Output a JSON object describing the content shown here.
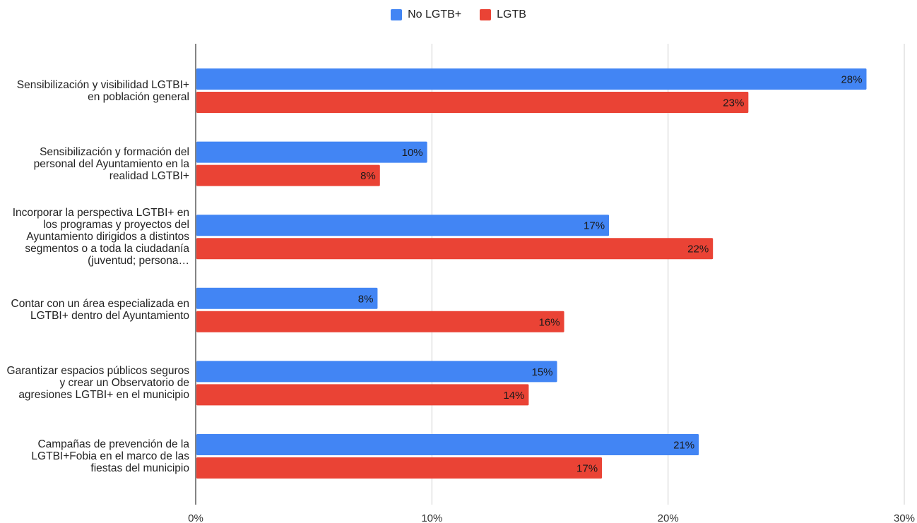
{
  "chart_data": {
    "type": "bar",
    "orientation": "horizontal",
    "categories": [
      "Sensibilización y visibilidad LGTBI+ en población general",
      "Sensibilización y formación del personal del Ayuntamiento en la realidad LGTBI+",
      "Incorporar la perspectiva LGTBI+ en los programas y proyectos del Ayuntamiento dirigidos a distintos segmentos o a toda la ciudadanía (juventud; persona…",
      "Contar con un área especializada en LGTBI+ dentro del Ayuntamiento",
      "Garantizar espacios públicos seguros y crear un Observatorio de agresiones LGTBI+ en el municipio",
      "Campañas de prevención de la LGTBI+Fobia en el marco de las fiestas del municipio"
    ],
    "series": [
      {
        "name": "No LGTB+",
        "color": "#4285F4",
        "values": [
          28.4,
          9.8,
          17.5,
          7.7,
          15.3,
          21.3
        ],
        "labels": [
          "28%",
          "10%",
          "17%",
          "8%",
          "15%",
          "21%"
        ]
      },
      {
        "name": "LGTB",
        "color": "#EA4335",
        "values": [
          23.4,
          7.8,
          21.9,
          15.6,
          14.1,
          17.2
        ],
        "labels": [
          "23%",
          "8%",
          "22%",
          "16%",
          "14%",
          "17%"
        ]
      }
    ],
    "xlim": [
      0,
      30
    ],
    "xticks": [
      "0%",
      "10%",
      "20%",
      "30%"
    ],
    "grid": true,
    "legend": "top-center"
  }
}
